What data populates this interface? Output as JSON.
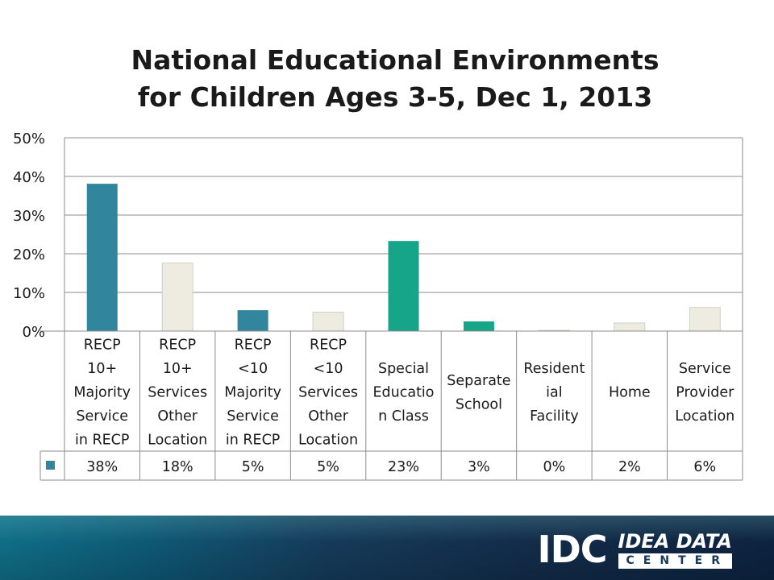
{
  "title_line1": "National Educational Environments",
  "title_line2": "for Children Ages 3-5, Dec 1, 2013",
  "chart_data": {
    "type": "bar",
    "title": "National Educational Environments for Children Ages 3-5, Dec 1, 2013",
    "categories": [
      [
        "RECP",
        "10+",
        "Majority",
        "Service",
        "in RECP"
      ],
      [
        "RECP",
        "10+",
        "Services",
        "Other",
        "Location"
      ],
      [
        "RECP",
        "<10",
        "Majority",
        "Service",
        "in RECP"
      ],
      [
        "RECP",
        "<10",
        "Services",
        "Other",
        "Location"
      ],
      [
        "Special",
        "Educatio",
        "n Class"
      ],
      [
        "Separate",
        "School"
      ],
      [
        "Resident",
        "ial",
        "Facility"
      ],
      [
        "Home"
      ],
      [
        "Service",
        "Provider",
        "Location"
      ]
    ],
    "values": [
      38.1,
      17.6,
      5.4,
      4.9,
      23.3,
      2.5,
      0.2,
      2.1,
      6.1
    ],
    "value_labels": [
      "38%",
      "18%",
      "5%",
      "5%",
      "23%",
      "3%",
      "0%",
      "2%",
      "6%"
    ],
    "bar_colors": [
      "#31859c",
      "#eeece1",
      "#31859c",
      "#eeece1",
      "#17a589",
      "#17a589",
      "#eeece1",
      "#eeece1",
      "#eeece1"
    ],
    "y_ticks": [
      "0%",
      "10%",
      "20%",
      "30%",
      "40%",
      "50%"
    ],
    "ylim": [
      0,
      50
    ],
    "grid": true,
    "legend_key_color": "#31859c",
    "xlabel": "",
    "ylabel": ""
  },
  "footer": {
    "logo_mark": "IDC",
    "logo_line1": "IDEA DATA",
    "logo_line2": "CENTER"
  }
}
